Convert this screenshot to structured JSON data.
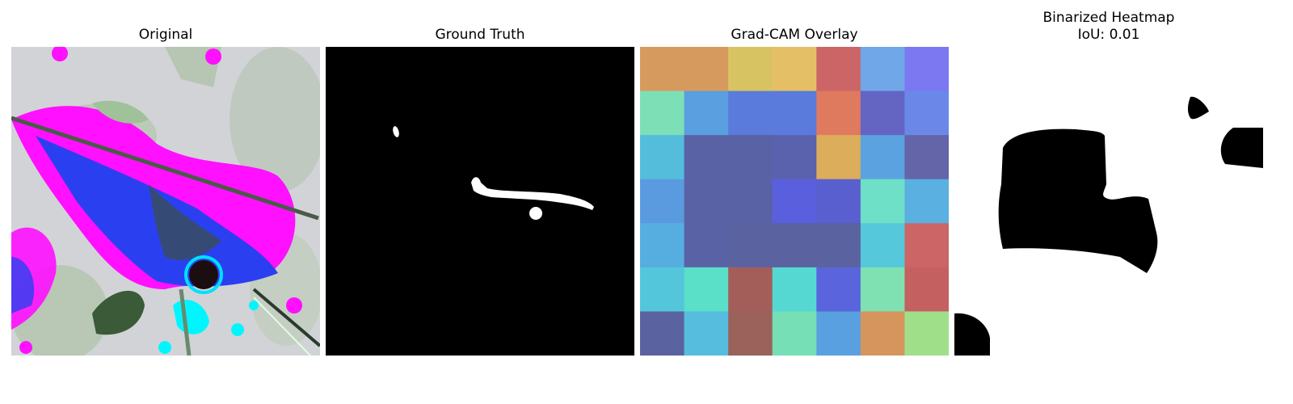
{
  "panels": [
    {
      "title": "Original"
    },
    {
      "title": "Ground Truth"
    },
    {
      "title": "Grad-CAM Overlay"
    },
    {
      "title_lines": [
        "Binarized Heatmap",
        "IoU: 0.01"
      ]
    }
  ],
  "colors": {
    "background": "#ffffff",
    "mask_fill": "#000000",
    "mask_foreground": "#ffffff",
    "leaf_magenta": "#ff00ff",
    "leaf_blue": "#2040f0",
    "leaf_green": "#b5c9b0",
    "cyan_spots": "#00ffff"
  },
  "gradcam_grid": [
    [
      "#d79a5e",
      "#d79a5e",
      "#d8c362",
      "#e5bf66",
      "#cc6565",
      "#6fa7e8",
      "#7b78f2"
    ],
    [
      "#7ddfb6",
      "#5a9fe0",
      "#5a7bdc",
      "#5a7bdc",
      "#df7a5e",
      "#6465c3",
      "#6b88e8"
    ],
    [
      "#54bddb",
      "#5a62a6",
      "#5a62a6",
      "#5a62ad",
      "#dcad5a",
      "#5aa2e0",
      "#6464a8"
    ],
    [
      "#5a9be0",
      "#5a62a6",
      "#5a62a6",
      "#5a5fdd",
      "#5a5fcf",
      "#6fe0c8",
      "#5ab0e0"
    ],
    [
      "#56aee0",
      "#5a62a6",
      "#5a62a0",
      "#5a62a0",
      "#5a62a0",
      "#56c8db",
      "#cc6565"
    ],
    [
      "#54c6db",
      "#5adfc9",
      "#a35e5a",
      "#56d8d2",
      "#5a64dc",
      "#7fe0b1",
      "#c46060"
    ],
    [
      "#5a63a0",
      "#56bddf",
      "#9a625a",
      "#76dfb6",
      "#58a0e0",
      "#d7955e",
      "#a0df8a"
    ]
  ]
}
